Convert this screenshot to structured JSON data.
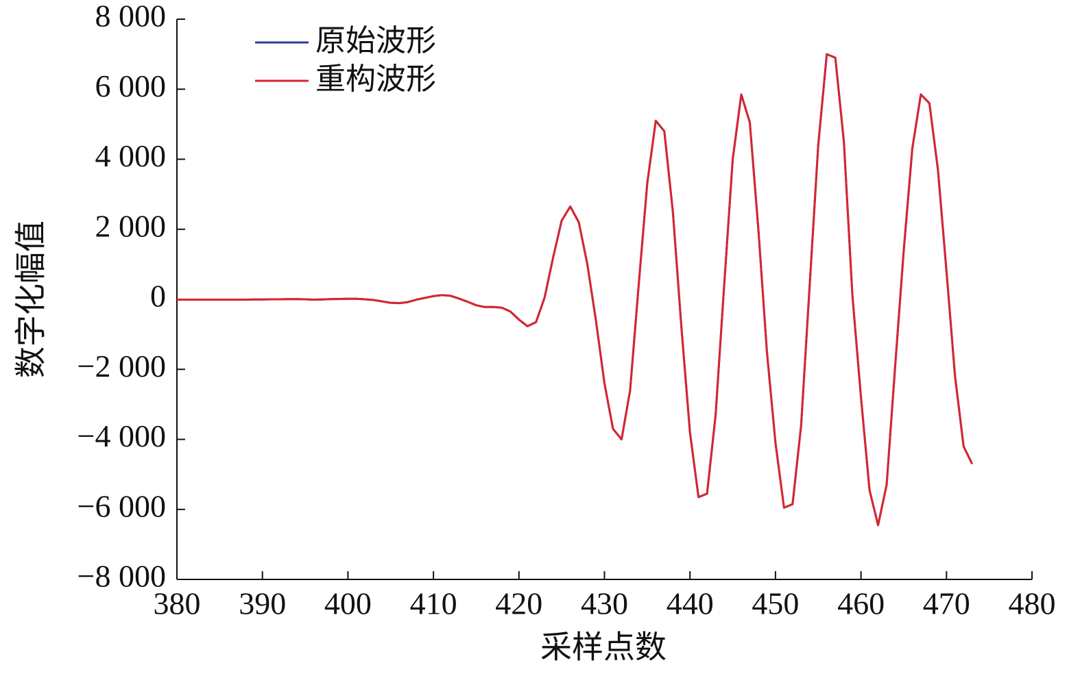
{
  "chart_data": {
    "type": "line",
    "x_label": "采样点数",
    "y_label": "数字化幅值",
    "x": [
      380,
      381,
      382,
      383,
      384,
      385,
      386,
      387,
      388,
      389,
      390,
      391,
      392,
      393,
      394,
      395,
      396,
      397,
      398,
      399,
      400,
      401,
      402,
      403,
      404,
      405,
      406,
      407,
      408,
      409,
      410,
      411,
      412,
      413,
      414,
      415,
      416,
      417,
      418,
      419,
      420,
      421,
      422,
      423,
      424,
      425,
      426,
      427,
      428,
      429,
      430,
      431,
      432,
      433,
      434,
      435,
      436,
      437,
      438,
      439,
      440,
      441,
      442,
      443,
      444,
      445,
      446,
      447,
      448,
      449,
      450,
      451,
      452,
      453,
      454,
      455,
      456,
      457,
      458,
      459,
      460,
      461,
      462,
      463,
      464,
      465,
      466,
      467,
      468,
      469,
      470,
      471,
      472,
      473
    ],
    "series": [
      {
        "name": "原始波形",
        "color": "#2b3b9c",
        "values": [
          -10,
          -10,
          -10,
          -10,
          -10,
          -10,
          -10,
          -10,
          -10,
          -5,
          -5,
          0,
          0,
          5,
          5,
          0,
          -10,
          -5,
          5,
          10,
          15,
          15,
          0,
          -20,
          -60,
          -100,
          -110,
          -80,
          -10,
          40,
          90,
          120,
          100,
          20,
          -70,
          -170,
          -220,
          -220,
          -240,
          -350,
          -580,
          -770,
          -650,
          50,
          1200,
          2250,
          2650,
          2200,
          1000,
          -600,
          -2400,
          -3700,
          -4000,
          -2600,
          400,
          3300,
          5100,
          4800,
          2500,
          -800,
          -3800,
          -5650,
          -5550,
          -3300,
          400,
          4000,
          5850,
          5050,
          2000,
          -1500,
          -4100,
          -5950,
          -5850,
          -3600,
          400,
          4400,
          7000,
          6900,
          4500,
          100,
          -2800,
          -5450,
          -6450,
          -5300,
          -1900,
          1400,
          4300,
          5850,
          5600,
          3700,
          800,
          -2200,
          -4200,
          -4700
        ]
      },
      {
        "name": "重构波形",
        "color": "#d7262f",
        "values": [
          -10,
          -10,
          -10,
          -10,
          -10,
          -10,
          -10,
          -10,
          -10,
          -5,
          -5,
          0,
          0,
          5,
          5,
          0,
          -10,
          -5,
          5,
          10,
          15,
          15,
          0,
          -20,
          -60,
          -100,
          -110,
          -80,
          -10,
          40,
          90,
          120,
          100,
          20,
          -70,
          -170,
          -220,
          -220,
          -240,
          -350,
          -580,
          -770,
          -650,
          50,
          1200,
          2250,
          2650,
          2200,
          1000,
          -600,
          -2400,
          -3700,
          -4000,
          -2600,
          400,
          3300,
          5100,
          4800,
          2500,
          -800,
          -3800,
          -5650,
          -5550,
          -3300,
          400,
          4000,
          5850,
          5050,
          2000,
          -1500,
          -4100,
          -5950,
          -5850,
          -3600,
          400,
          4400,
          7000,
          6900,
          4500,
          100,
          -2800,
          -5450,
          -6450,
          -5300,
          -1900,
          1400,
          4300,
          5850,
          5600,
          3700,
          800,
          -2200,
          -4200,
          -4700
        ]
      }
    ],
    "xlim": [
      380,
      480
    ],
    "xticks": [
      380,
      390,
      400,
      410,
      420,
      430,
      440,
      450,
      460,
      470,
      480
    ],
    "ylim": [
      -8000,
      8000
    ],
    "yticks": [
      {
        "value": -8000,
        "label": "−8 000"
      },
      {
        "value": -6000,
        "label": "−6 000"
      },
      {
        "value": -4000,
        "label": "−4 000"
      },
      {
        "value": -2000,
        "label": "−2 000"
      },
      0,
      {
        "value": 2000,
        "label": "2 000"
      },
      {
        "value": 4000,
        "label": "4 000"
      },
      {
        "value": 6000,
        "label": "6 000"
      },
      {
        "value": 8000,
        "label": "8 000"
      }
    ],
    "grid": false,
    "legend": "upper left"
  }
}
